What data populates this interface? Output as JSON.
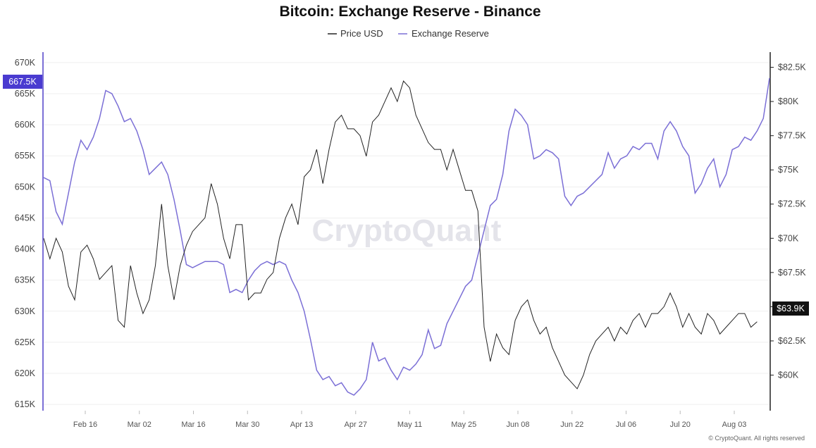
{
  "chart_data": {
    "type": "line",
    "title": "Bitcoin: Exchange Reserve - Binance",
    "legend": [
      "Price USD",
      "Exchange Reserve"
    ],
    "legend_position": "top-center",
    "watermark": "CryptoQuant",
    "copyright": "© CryptoQuant. All rights reserved",
    "x_ticks": [
      "Feb 16",
      "Mar 02",
      "Mar 16",
      "Mar 30",
      "Apr 13",
      "Apr 27",
      "May 11",
      "May 25",
      "Jun 08",
      "Jun 22",
      "Jul 06",
      "Jul 20",
      "Aug 03"
    ],
    "left_axis": {
      "ticks": [
        "670K",
        "665K",
        "660K",
        "655K",
        "650K",
        "645K",
        "640K",
        "635K",
        "630K",
        "625K",
        "620K",
        "615K"
      ],
      "ylim": [
        614000,
        671000
      ],
      "current_label": "667.5K"
    },
    "right_axis": {
      "ticks": [
        "$82.5K",
        "$80K",
        "$77.5K",
        "$75K",
        "$72.5K",
        "$70K",
        "$67.5K",
        "$65K",
        "$62.5K",
        "$60K"
      ],
      "ylim": [
        57400,
        83300
      ],
      "current_label": "$63.9K"
    },
    "grid": "horizontal",
    "series": [
      {
        "name": "Exchange Reserve",
        "axis": "left",
        "color": "#7b6fd6",
        "points": [
          [
            1,
            651.5
          ],
          [
            2,
            651
          ],
          [
            3,
            646
          ],
          [
            4,
            644
          ],
          [
            5,
            649
          ],
          [
            6,
            654
          ],
          [
            7,
            657.5
          ],
          [
            8,
            656
          ],
          [
            9,
            658
          ],
          [
            10,
            661
          ],
          [
            11,
            665.5
          ],
          [
            12,
            665
          ],
          [
            13,
            663
          ],
          [
            14,
            660.5
          ],
          [
            15,
            661
          ],
          [
            16,
            659
          ],
          [
            17,
            656
          ],
          [
            18,
            652
          ],
          [
            19,
            653
          ],
          [
            20,
            654
          ],
          [
            21,
            652
          ],
          [
            22,
            648
          ],
          [
            23,
            643
          ],
          [
            24,
            637.5
          ],
          [
            25,
            637
          ],
          [
            26,
            637.5
          ],
          [
            27,
            638
          ],
          [
            28,
            638
          ],
          [
            29,
            638
          ],
          [
            30,
            637.5
          ],
          [
            31,
            633
          ],
          [
            32,
            633.5
          ],
          [
            33,
            633
          ],
          [
            34,
            635
          ],
          [
            35,
            636.5
          ],
          [
            36,
            637.5
          ],
          [
            37,
            638
          ],
          [
            38,
            637.5
          ],
          [
            39,
            638
          ],
          [
            40,
            637.5
          ],
          [
            41,
            635
          ],
          [
            42,
            633
          ],
          [
            43,
            630
          ],
          [
            44,
            625.5
          ],
          [
            45,
            620.5
          ],
          [
            46,
            619
          ],
          [
            47,
            619.5
          ],
          [
            48,
            618
          ],
          [
            49,
            618.5
          ],
          [
            50,
            617
          ],
          [
            51,
            616.5
          ],
          [
            52,
            617.5
          ],
          [
            53,
            619
          ],
          [
            54,
            625
          ],
          [
            55,
            622
          ],
          [
            56,
            622.5
          ],
          [
            57,
            620.5
          ],
          [
            58,
            619
          ],
          [
            59,
            621
          ],
          [
            60,
            620.5
          ],
          [
            61,
            621.5
          ],
          [
            62,
            623
          ],
          [
            63,
            627
          ],
          [
            64,
            624
          ],
          [
            65,
            624.5
          ],
          [
            66,
            628
          ],
          [
            67,
            630
          ],
          [
            68,
            632
          ],
          [
            69,
            634
          ],
          [
            70,
            635
          ],
          [
            71,
            639
          ],
          [
            72,
            643
          ],
          [
            73,
            647
          ],
          [
            74,
            648
          ],
          [
            75,
            652
          ],
          [
            76,
            659
          ],
          [
            77,
            662.5
          ],
          [
            78,
            661.5
          ],
          [
            79,
            660
          ],
          [
            80,
            654.5
          ],
          [
            81,
            655
          ],
          [
            82,
            656
          ],
          [
            83,
            655.5
          ],
          [
            84,
            654.5
          ],
          [
            85,
            648.5
          ],
          [
            86,
            647
          ],
          [
            87,
            648.5
          ],
          [
            88,
            649
          ],
          [
            89,
            650
          ],
          [
            90,
            651
          ],
          [
            91,
            652
          ],
          [
            92,
            655.5
          ],
          [
            93,
            653
          ],
          [
            94,
            654.5
          ],
          [
            95,
            655
          ],
          [
            96,
            656.5
          ],
          [
            97,
            656
          ],
          [
            98,
            657
          ],
          [
            99,
            657
          ],
          [
            100,
            654.5
          ],
          [
            101,
            659
          ],
          [
            102,
            660.5
          ],
          [
            103,
            659
          ],
          [
            104,
            656.5
          ],
          [
            105,
            655
          ],
          [
            106,
            649
          ],
          [
            107,
            650.5
          ],
          [
            108,
            653
          ],
          [
            109,
            654.5
          ],
          [
            110,
            650
          ],
          [
            111,
            652
          ],
          [
            112,
            656
          ],
          [
            113,
            656.5
          ],
          [
            114,
            658
          ],
          [
            115,
            657.5
          ],
          [
            116,
            659
          ],
          [
            117,
            661
          ],
          [
            118,
            667.5
          ]
        ]
      },
      {
        "name": "Price USD",
        "axis": "right",
        "color": "#222222",
        "points": [
          [
            1,
            70
          ],
          [
            2,
            68.5
          ],
          [
            3,
            70
          ],
          [
            4,
            69
          ],
          [
            5,
            66.5
          ],
          [
            6,
            65.5
          ],
          [
            7,
            69
          ],
          [
            8,
            69.5
          ],
          [
            9,
            68.5
          ],
          [
            10,
            67
          ],
          [
            11,
            67.5
          ],
          [
            12,
            68
          ],
          [
            13,
            64
          ],
          [
            14,
            63.5
          ],
          [
            15,
            68
          ],
          [
            16,
            66
          ],
          [
            17,
            64.5
          ],
          [
            18,
            65.5
          ],
          [
            19,
            68
          ],
          [
            20,
            72.5
          ],
          [
            21,
            68
          ],
          [
            22,
            65.5
          ],
          [
            23,
            68
          ],
          [
            24,
            69.5
          ],
          [
            25,
            70.5
          ],
          [
            26,
            71
          ],
          [
            27,
            71.5
          ],
          [
            28,
            74
          ],
          [
            29,
            72.5
          ],
          [
            30,
            70
          ],
          [
            31,
            68.5
          ],
          [
            32,
            71
          ],
          [
            33,
            71
          ],
          [
            34,
            65.5
          ],
          [
            35,
            66
          ],
          [
            36,
            66
          ],
          [
            37,
            67
          ],
          [
            38,
            67.5
          ],
          [
            39,
            70
          ],
          [
            40,
            71.5
          ],
          [
            41,
            72.5
          ],
          [
            42,
            71
          ],
          [
            43,
            74.5
          ],
          [
            44,
            75
          ],
          [
            45,
            76.5
          ],
          [
            46,
            74
          ],
          [
            47,
            76.5
          ],
          [
            48,
            78.5
          ],
          [
            49,
            79
          ],
          [
            50,
            78
          ],
          [
            51,
            78
          ],
          [
            52,
            77.5
          ],
          [
            53,
            76
          ],
          [
            54,
            78.5
          ],
          [
            55,
            79
          ],
          [
            56,
            80
          ],
          [
            57,
            81
          ],
          [
            58,
            80
          ],
          [
            59,
            81.5
          ],
          [
            60,
            81
          ],
          [
            61,
            79
          ],
          [
            62,
            78
          ],
          [
            63,
            77
          ],
          [
            64,
            76.5
          ],
          [
            65,
            76.5
          ],
          [
            66,
            75
          ],
          [
            67,
            76.5
          ],
          [
            68,
            75
          ],
          [
            69,
            73.5
          ],
          [
            70,
            73.5
          ],
          [
            71,
            72
          ],
          [
            72,
            63.5
          ],
          [
            73,
            61
          ],
          [
            74,
            63
          ],
          [
            75,
            62
          ],
          [
            76,
            61.5
          ],
          [
            77,
            64
          ],
          [
            78,
            65
          ],
          [
            79,
            65.5
          ],
          [
            80,
            64
          ],
          [
            81,
            63
          ],
          [
            82,
            63.5
          ],
          [
            83,
            62
          ],
          [
            84,
            61
          ],
          [
            85,
            60
          ],
          [
            86,
            59.5
          ],
          [
            87,
            59
          ],
          [
            88,
            60
          ],
          [
            89,
            61.5
          ],
          [
            90,
            62.5
          ],
          [
            91,
            63
          ],
          [
            92,
            63.5
          ],
          [
            93,
            62.5
          ],
          [
            94,
            63.5
          ],
          [
            95,
            63
          ],
          [
            96,
            64
          ],
          [
            97,
            64.5
          ],
          [
            98,
            63.5
          ],
          [
            99,
            64.5
          ],
          [
            100,
            64.5
          ],
          [
            101,
            65
          ],
          [
            102,
            66
          ],
          [
            103,
            65
          ],
          [
            104,
            63.5
          ],
          [
            105,
            64.5
          ],
          [
            106,
            63.5
          ],
          [
            107,
            63
          ],
          [
            108,
            64.5
          ],
          [
            109,
            64
          ],
          [
            110,
            63
          ],
          [
            111,
            63.5
          ],
          [
            112,
            64
          ],
          [
            113,
            64.5
          ],
          [
            114,
            64.5
          ],
          [
            115,
            63.5
          ],
          [
            116,
            63.9
          ]
        ]
      }
    ]
  }
}
